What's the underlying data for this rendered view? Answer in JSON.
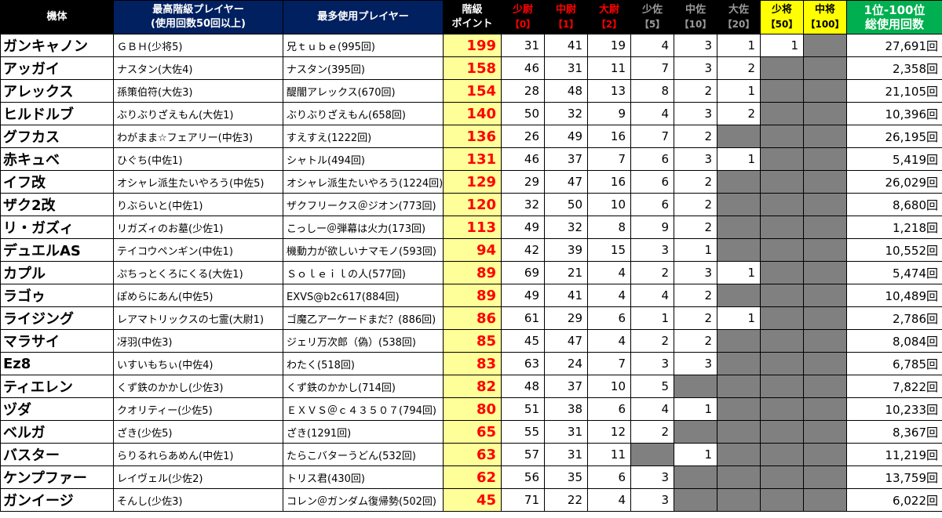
{
  "header": {
    "unit": "機体",
    "top_player": [
      "最高階級プレイヤー",
      "(使用回数50回以上)"
    ],
    "most_player": "最多使用プレイヤー",
    "points": [
      "階級",
      "ポイント"
    ],
    "ranks": [
      {
        "name": "少尉",
        "pts": "【0】"
      },
      {
        "name": "中尉",
        "pts": "【1】"
      },
      {
        "name": "大尉",
        "pts": "【2】"
      },
      {
        "name": "少佐",
        "pts": "【5】"
      },
      {
        "name": "中佐",
        "pts": "【10】"
      },
      {
        "name": "大佐",
        "pts": "【20】"
      },
      {
        "name": "少将",
        "pts": "【50】"
      },
      {
        "name": "中将",
        "pts": "【100】"
      }
    ],
    "total": [
      "1位-100位",
      "総使用回数"
    ]
  },
  "rows": [
    {
      "unit": "ガンキャノン",
      "top": "ＧＢＨ(少将5)",
      "most": "兄ｔｕｂｅ(995回)",
      "pts": "199",
      "c": [
        "31",
        "41",
        "19",
        "4",
        "3",
        "1",
        "1",
        null
      ],
      "total": "27,691回"
    },
    {
      "unit": "アッガイ",
      "top": "ナスタン(大佐4)",
      "most": "ナスタン(395回)",
      "pts": "158",
      "c": [
        "46",
        "31",
        "11",
        "7",
        "3",
        "2",
        null,
        null
      ],
      "total": "2,358回"
    },
    {
      "unit": "アレックス",
      "top": "孫策伯符(大佐3)",
      "most": "醍闇アレックス(670回)",
      "pts": "154",
      "c": [
        "28",
        "48",
        "13",
        "8",
        "2",
        "1",
        null,
        null
      ],
      "total": "21,105回"
    },
    {
      "unit": "ヒルドルブ",
      "top": "ぶりぶりざえもん(大佐1)",
      "most": "ぶりぶりざえもん(658回)",
      "pts": "140",
      "c": [
        "50",
        "32",
        "9",
        "4",
        "3",
        "2",
        null,
        null
      ],
      "total": "10,396回"
    },
    {
      "unit": "グフカス",
      "top": "わがまま☆フェアリー(中佐3)",
      "most": "すえすえ(1222回)",
      "pts": "136",
      "c": [
        "26",
        "49",
        "16",
        "7",
        "2",
        null,
        null,
        null
      ],
      "total": "26,195回"
    },
    {
      "unit": "赤キュベ",
      "top": "ひぐち(中佐1)",
      "most": "シャトル(494回)",
      "pts": "131",
      "c": [
        "46",
        "37",
        "7",
        "6",
        "3",
        "1",
        null,
        null
      ],
      "total": "5,419回"
    },
    {
      "unit": "イフ改",
      "top": "オシャレ派生たいやろう(中佐5)",
      "most": "オシャレ派生たいやろう(1224回)",
      "pts": "129",
      "c": [
        "29",
        "47",
        "16",
        "6",
        "2",
        null,
        null,
        null
      ],
      "total": "26,029回"
    },
    {
      "unit": "ザク2改",
      "top": "りぶらいと(中佐1)",
      "most": "ザクフリークス＠ジオン(773回)",
      "pts": "120",
      "c": [
        "32",
        "50",
        "10",
        "6",
        "2",
        null,
        null,
        null
      ],
      "total": "8,680回"
    },
    {
      "unit": "リ・ガズィ",
      "top": "リガズィのお墓(少佐1)",
      "most": "こっしー＠弾幕は火力(173回)",
      "pts": "113",
      "c": [
        "49",
        "32",
        "8",
        "9",
        "2",
        null,
        null,
        null
      ],
      "total": "1,218回"
    },
    {
      "unit": "デュエルAS",
      "top": "テイコウペンギン(中佐1)",
      "most": "機動力が欲しいナマモノ(593回)",
      "pts": "94",
      "c": [
        "42",
        "39",
        "15",
        "3",
        "1",
        null,
        null,
        null
      ],
      "total": "10,552回"
    },
    {
      "unit": "カプル",
      "top": "ぷちっとくろにくる(大佐1)",
      "most": "Ｓｏｌｅｉｌの人(577回)",
      "pts": "89",
      "c": [
        "69",
        "21",
        "4",
        "2",
        "3",
        "1",
        null,
        null
      ],
      "total": "5,474回"
    },
    {
      "unit": "ラゴゥ",
      "top": "ぽめらにあん(中佐5)",
      "most": "EXVS@b2c617(884回)",
      "pts": "89",
      "c": [
        "49",
        "41",
        "4",
        "4",
        "2",
        null,
        null,
        null
      ],
      "total": "10,489回"
    },
    {
      "unit": "ライジング",
      "top": "レアマトリックスの七霊(大尉1)",
      "most": "ゴ魔乙アーケードまだ？(886回)",
      "pts": "86",
      "c": [
        "61",
        "29",
        "6",
        "1",
        "2",
        "1",
        null,
        null
      ],
      "total": "2,786回"
    },
    {
      "unit": "マラサイ",
      "top": "冴羽(中佐3)",
      "most": "ジェリ万次郎（偽）(538回)",
      "pts": "85",
      "c": [
        "45",
        "47",
        "4",
        "2",
        "2",
        null,
        null,
        null
      ],
      "total": "8,084回"
    },
    {
      "unit": "Ez8",
      "top": "いすいもちぃ(中佐4)",
      "most": "わたく(518回)",
      "pts": "83",
      "c": [
        "63",
        "24",
        "7",
        "3",
        "3",
        null,
        null,
        null
      ],
      "total": "6,785回"
    },
    {
      "unit": "ティエレン",
      "top": "くず鉄のかかし(少佐3)",
      "most": "くず鉄のかかし(714回)",
      "pts": "82",
      "c": [
        "48",
        "37",
        "10",
        "5",
        null,
        null,
        null,
        null
      ],
      "total": "7,822回"
    },
    {
      "unit": "ヅダ",
      "top": "クオリティー(少佐5)",
      "most": "ＥＸＶＳ＠ｃ４３５０７(794回)",
      "pts": "80",
      "c": [
        "51",
        "38",
        "6",
        "4",
        "1",
        null,
        null,
        null
      ],
      "total": "10,233回"
    },
    {
      "unit": "ベルガ",
      "top": "ざき(少佐5)",
      "most": "ざき(1291回)",
      "pts": "65",
      "c": [
        "55",
        "31",
        "12",
        "2",
        null,
        null,
        null,
        null
      ],
      "total": "8,367回"
    },
    {
      "unit": "バスター",
      "top": "らりるれらあめん(中佐1)",
      "most": "たらこバターうどん(532回)",
      "pts": "63",
      "c": [
        "57",
        "31",
        "11",
        null,
        "1",
        null,
        null,
        null
      ],
      "total": "11,219回"
    },
    {
      "unit": "ケンプファー",
      "top": "レイヴェル(少佐2)",
      "most": "トリス君(430回)",
      "pts": "62",
      "c": [
        "56",
        "35",
        "6",
        "3",
        null,
        null,
        null,
        null
      ],
      "total": "13,759回"
    },
    {
      "unit": "ガンイージ",
      "top": "そんし(少佐3)",
      "most": "コレン＠ガンダム復帰勢(502回)",
      "pts": "45",
      "c": [
        "71",
        "22",
        "4",
        "3",
        null,
        null,
        null,
        null
      ],
      "total": "6,022回"
    }
  ]
}
